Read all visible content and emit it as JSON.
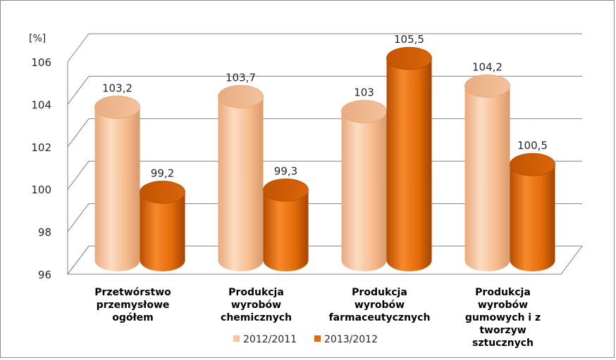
{
  "chart_data": {
    "type": "bar",
    "style": "3d-cylinder",
    "ylabel": "[%]",
    "ylim": [
      96,
      106
    ],
    "yticks": [
      "96",
      "98",
      "100",
      "102",
      "104",
      "106"
    ],
    "grid": true,
    "legend_position": "bottom",
    "categories": [
      [
        "Przetwórstwo",
        "przemysłowe",
        "ogółem"
      ],
      [
        "Produkcja",
        "wyrobów",
        "chemicznych"
      ],
      [
        "Produkcja",
        "wyrobów",
        "farmaceutycznych"
      ],
      [
        "Produkcja",
        "wyrobów",
        "gumowych i z",
        "tworzyw",
        "sztucznych"
      ]
    ],
    "series": [
      {
        "name": "2012/2011",
        "color": "#F9C49A",
        "values": [
          103.2,
          103.7,
          103.0,
          104.2
        ],
        "labels": [
          "103,2",
          "103,7",
          "103",
          "104,2"
        ]
      },
      {
        "name": "2013/2012",
        "color": "#E36C0A",
        "values": [
          99.2,
          99.3,
          105.5,
          100.5
        ],
        "labels": [
          "99,2",
          "99,3",
          "105,5",
          "100,5"
        ]
      }
    ]
  }
}
